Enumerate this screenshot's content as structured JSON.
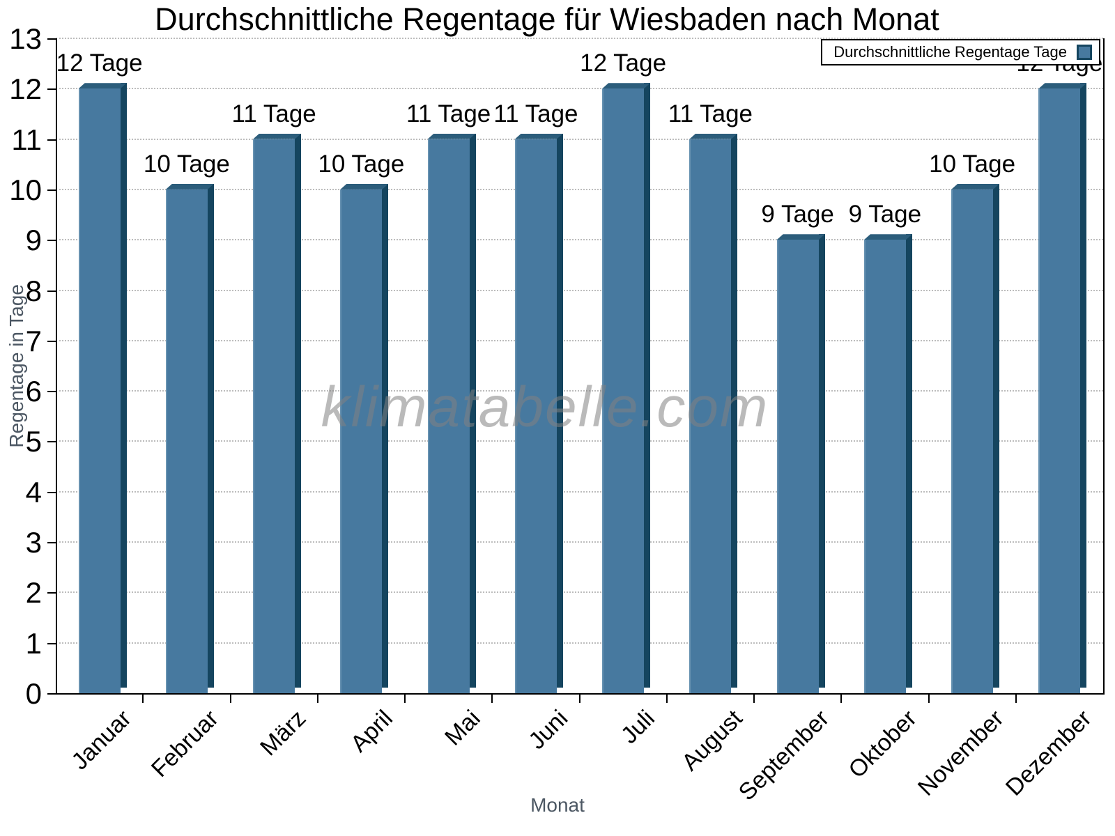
{
  "title": "Durchschnittliche Regentage für Wiesbaden nach Monat",
  "legend": {
    "label": "Durchschnittliche Regentage Tage"
  },
  "watermark": "klimatabelle.com",
  "colors": {
    "bar_fill": "#47799f",
    "bar_side_dark": "#15455f",
    "bar_top": "#2c5d7b",
    "bar_highlight": "#6792b1",
    "grid": "#bcbcbc",
    "axis": "#000000",
    "axis_title_gray": "#4c5763",
    "watermark_gray": "#828282"
  },
  "chart_data": {
    "type": "bar",
    "title": "Durchschnittliche Regentage für Wiesbaden nach Monat",
    "categories": [
      "Januar",
      "Februar",
      "März",
      "April",
      "Mai",
      "Juni",
      "Juli",
      "August",
      "September",
      "Oktober",
      "November",
      "Dezember"
    ],
    "values": [
      12,
      10,
      11,
      10,
      11,
      11,
      12,
      11,
      9,
      9,
      10,
      12
    ],
    "bar_labels": [
      "12 Tage",
      "10 Tage",
      "11 Tage",
      "10 Tage",
      "11 Tage",
      "11 Tage",
      "12 Tage",
      "11 Tage",
      "9 Tage",
      "9 Tage",
      "10 Tage",
      "12 Tage"
    ],
    "xlabel": "Monat",
    "ylabel": "Regentage in Tage",
    "ylim": [
      0,
      13
    ],
    "yticks": [
      0,
      1,
      2,
      3,
      4,
      5,
      6,
      7,
      8,
      9,
      10,
      11,
      12,
      13
    ],
    "grid": "horizontal-dotted",
    "legend_entries": [
      "Durchschnittliche Regentage Tage"
    ],
    "legend_position": "top-right",
    "bar_color": "#47799f",
    "bar_style": "3d-bevel"
  }
}
